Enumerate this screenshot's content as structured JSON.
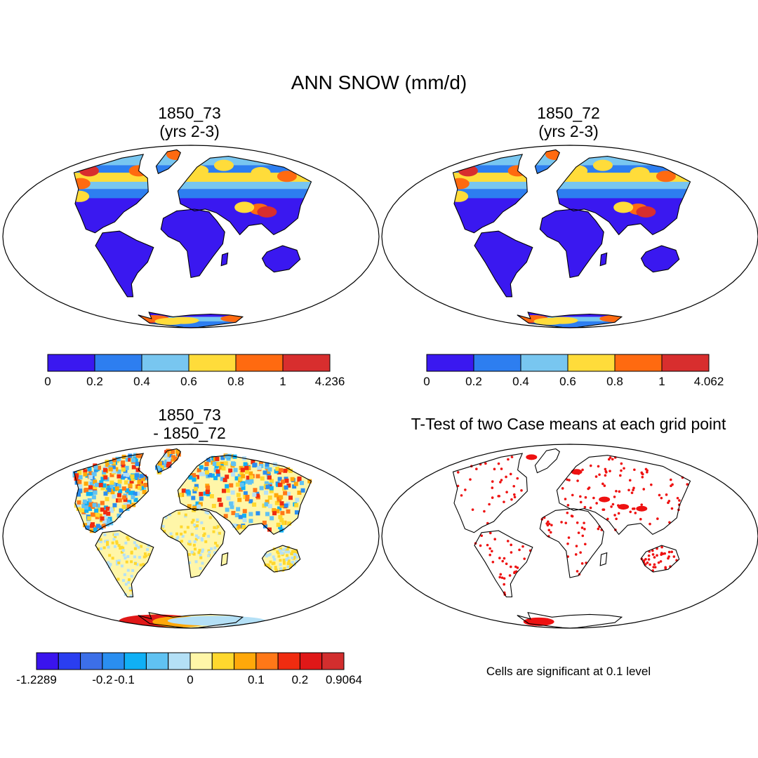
{
  "title": "ANN SNOW (mm/d)",
  "panels": [
    {
      "id": "case1",
      "title_line1": "1850_73",
      "title_line2": "(yrs 2-3)",
      "colorbar": {
        "colors": [
          "#3a18f0",
          "#2d7ef0",
          "#78c6f0",
          "#ffdc3a",
          "#ff6a10",
          "#d82e2e"
        ],
        "labels": [
          "0",
          "0.2",
          "0.4",
          "0.6",
          "0.8",
          "1",
          "4.236"
        ]
      }
    },
    {
      "id": "case2",
      "title_line1": "1850_72",
      "title_line2": "(yrs 2-3)",
      "colorbar": {
        "colors": [
          "#3a18f0",
          "#2d7ef0",
          "#78c6f0",
          "#ffdc3a",
          "#ff6a10",
          "#d82e2e"
        ],
        "labels": [
          "0",
          "0.2",
          "0.4",
          "0.6",
          "0.8",
          "1",
          "4.062"
        ]
      }
    },
    {
      "id": "difference",
      "title_line1": "1850_73",
      "title_line2": "- 1850_72",
      "colorbar": {
        "colors": [
          "#3a14ee",
          "#2a3ef0",
          "#3c6fe8",
          "#2a8ef0",
          "#10b0f5",
          "#60c2f2",
          "#b4e0f6",
          "#fff6a8",
          "#ffd82e",
          "#ffa80a",
          "#ff7818",
          "#f02c10",
          "#e01818",
          "#d22e2e"
        ],
        "labels": [
          "-1.2289",
          "-0.2",
          "-0.1",
          "0",
          "0.1",
          "0.2",
          "0.9064"
        ]
      }
    },
    {
      "id": "ttest",
      "title_line1": "T-Test of two Case means at each grid point",
      "note": "Cells are significant at 0.1 level",
      "marker_color": "#ee1111"
    }
  ]
}
